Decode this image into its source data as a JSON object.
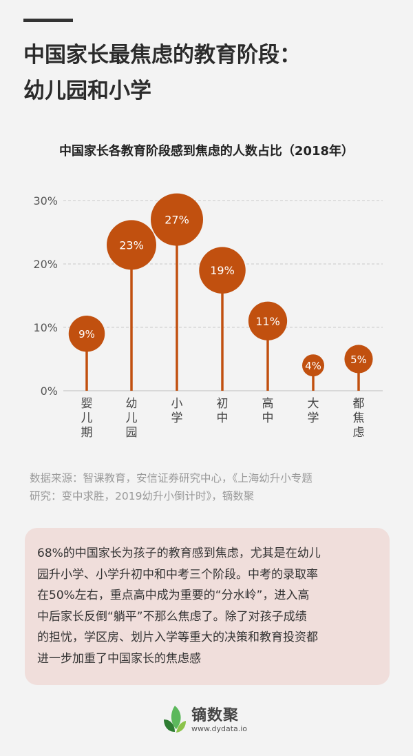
{
  "header": {
    "title_line1": "中国家长最焦虑的教育阶段：",
    "title_line2": "幼儿园和小学"
  },
  "chart_data": {
    "type": "lollipop",
    "title": "中国家长各教育阶段感到焦虑的人数占比（2018年）",
    "categories": [
      "婴儿期",
      "幼儿园",
      "小学",
      "初中",
      "高中",
      "大学",
      "都焦虑"
    ],
    "values": [
      9,
      23,
      27,
      19,
      11,
      4,
      5
    ],
    "value_labels": [
      "9%",
      "23%",
      "27%",
      "19%",
      "11%",
      "4%",
      "5%"
    ],
    "y_ticks": [
      "0%",
      "10%",
      "20%",
      "30%"
    ],
    "y_tick_values": [
      0,
      10,
      20,
      30
    ],
    "ylim": [
      0,
      30
    ],
    "grid": true,
    "color": "#c1500f"
  },
  "source": {
    "line1": "数据来源：智课教育，安信证券研究中心，《上海幼升小专题",
    "line2": "研究：变中求胜，2019幼升小倒计时》，镝数聚"
  },
  "note": {
    "lines": [
      "68%的中国家长为孩子的教育感到焦虑，尤其是在幼儿",
      "园升小学、小学升初中和中考三个阶段。中考的录取率",
      "在50%左右，重点高中成为重要的“分水岭”，进入高",
      "中后家长反倒“躺平”不那么焦虑了。除了对孩子成绩",
      "的担忧，学区房、划片入学等重大的决策和教育投资都",
      "进一步加重了中国家长的焦虑感"
    ]
  },
  "brand": {
    "name": "镝数聚",
    "url": "www.dydata.io"
  }
}
